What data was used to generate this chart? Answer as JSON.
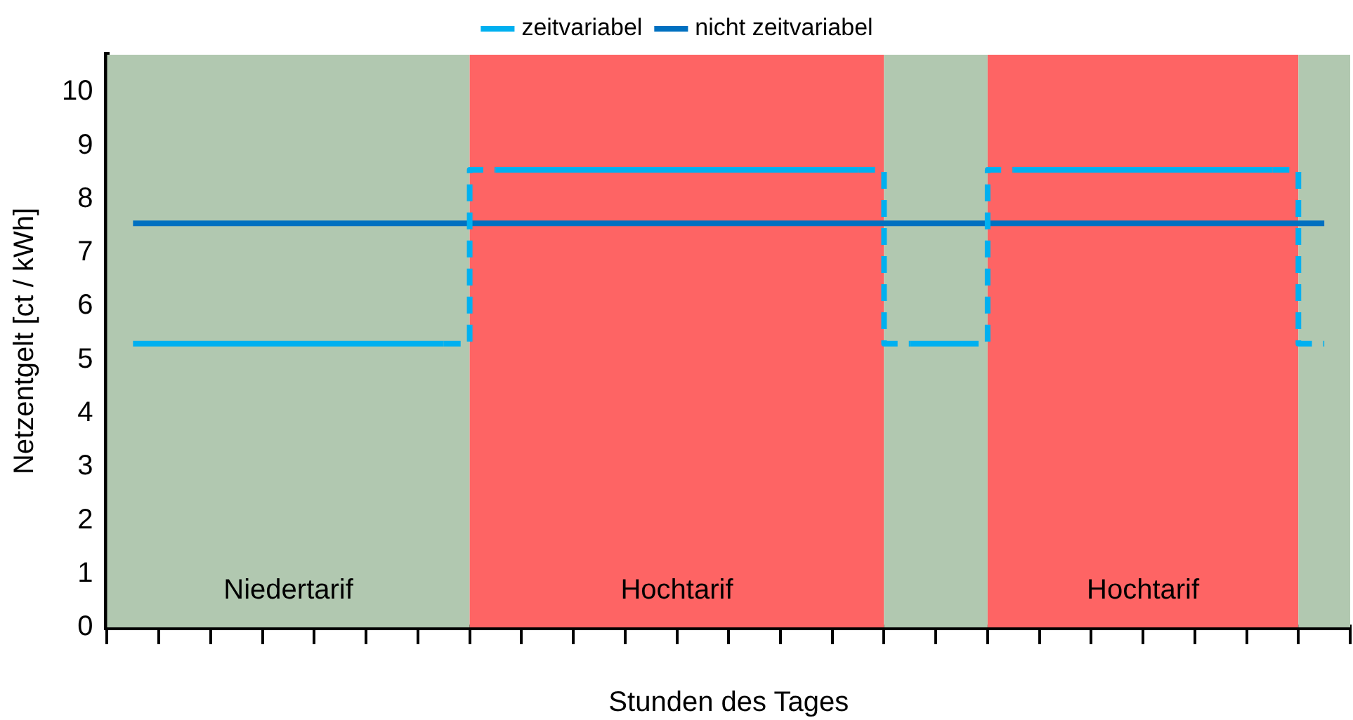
{
  "chart_data": {
    "type": "step",
    "xlabel": "Stunden des Tages",
    "ylabel": "Netzentgelt [ct / kWh]",
    "categories": [
      null,
      null,
      null,
      null,
      null,
      null,
      null,
      null,
      null,
      null,
      null,
      null,
      null,
      null,
      null,
      null,
      null,
      null,
      null,
      null,
      null,
      null,
      null,
      null
    ],
    "ylim": [
      0,
      10.7
    ],
    "yticks": [
      0,
      1,
      2,
      3,
      4,
      5,
      6,
      7,
      8,
      9,
      10
    ],
    "series": [
      {
        "name": "zeitvariabel",
        "color": "#00b0f0",
        "values": [
          5.3,
          5.3,
          5.3,
          5.3,
          5.3,
          5.3,
          5.3,
          8.55,
          8.55,
          8.55,
          8.55,
          8.55,
          8.55,
          8.55,
          8.55,
          5.3,
          5.3,
          8.55,
          8.55,
          8.55,
          8.55,
          8.55,
          8.55,
          5.3
        ]
      },
      {
        "name": "nicht zeitvariabel",
        "color": "#0070c0",
        "values": [
          7.55,
          7.55,
          7.55,
          7.55,
          7.55,
          7.55,
          7.55,
          7.55,
          7.55,
          7.55,
          7.55,
          7.55,
          7.55,
          7.55,
          7.55,
          7.55,
          7.55,
          7.55,
          7.55,
          7.55,
          7.55,
          7.55,
          7.55,
          7.55
        ]
      }
    ],
    "annotations": [
      "Niedertarif",
      "Hochtarif",
      "Hochtarif"
    ],
    "legend": "top",
    "grid": false,
    "marker": "none"
  }
}
